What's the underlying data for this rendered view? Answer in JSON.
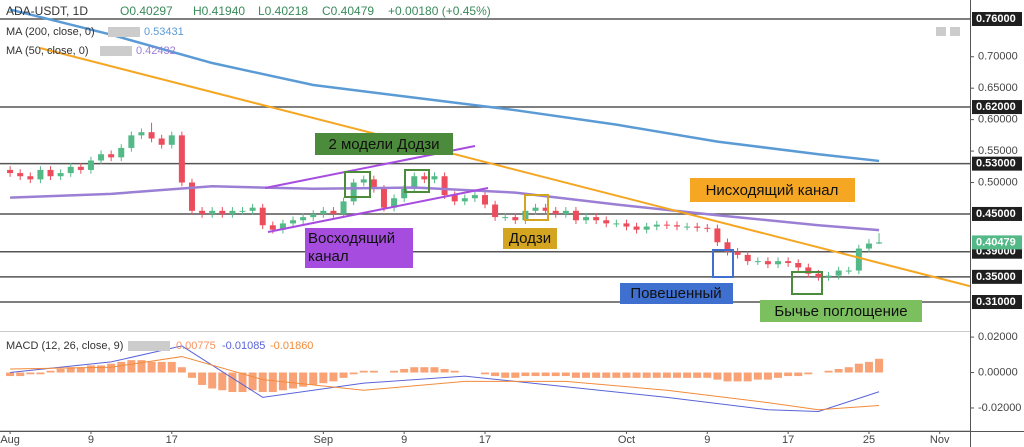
{
  "header": {
    "symbol": "ADA-USDT, 1D",
    "open": "O0.40297",
    "high": "H0.41940",
    "low": "L0.40218",
    "close": "C0.40479",
    "change": "+0.00180 (+0.45%)"
  },
  "chart_data": [
    {
      "type": "candlestick",
      "x": [
        0,
        1,
        2,
        3,
        4,
        5,
        6,
        7,
        8,
        9,
        10,
        11,
        12,
        13,
        14,
        15,
        16,
        17,
        18,
        19,
        20,
        21,
        22,
        23,
        24,
        25,
        26,
        27,
        28,
        29,
        30,
        31,
        32,
        33,
        34,
        35,
        36,
        37,
        38,
        39,
        40,
        41,
        42,
        43,
        44,
        45,
        46,
        47,
        48,
        49,
        50,
        51,
        52,
        53,
        54,
        55,
        56,
        57,
        58,
        59,
        60,
        61,
        62,
        63,
        64,
        65,
        66,
        67,
        68,
        69,
        70,
        71,
        72,
        73,
        74,
        75,
        76,
        77,
        78,
        79,
        80,
        81,
        82,
        83,
        84,
        85,
        86
      ],
      "open": [
        0.52,
        0.515,
        0.51,
        0.505,
        0.52,
        0.51,
        0.515,
        0.525,
        0.52,
        0.535,
        0.545,
        0.54,
        0.555,
        0.575,
        0.58,
        0.57,
        0.56,
        0.575,
        0.5,
        0.455,
        0.45,
        0.455,
        0.45,
        0.455,
        0.455,
        0.46,
        0.432,
        0.425,
        0.435,
        0.44,
        0.445,
        0.45,
        0.455,
        0.45,
        0.47,
        0.5,
        0.505,
        0.49,
        0.46,
        0.475,
        0.49,
        0.51,
        0.505,
        0.51,
        0.48,
        0.47,
        0.475,
        0.48,
        0.465,
        0.445,
        0.445,
        0.44,
        0.455,
        0.46,
        0.455,
        0.45,
        0.455,
        0.44,
        0.445,
        0.44,
        0.435,
        0.435,
        0.43,
        0.425,
        0.43,
        0.433,
        0.432,
        0.43,
        0.43,
        0.428,
        0.427,
        0.405,
        0.39,
        0.385,
        0.375,
        0.375,
        0.37,
        0.375,
        0.372,
        0.365,
        0.355,
        0.35,
        0.352,
        0.36,
        0.36,
        0.395,
        0.40297
      ],
      "high": [
        0.526,
        0.521,
        0.516,
        0.526,
        0.526,
        0.521,
        0.531,
        0.531,
        0.541,
        0.551,
        0.551,
        0.561,
        0.581,
        0.586,
        0.595,
        0.576,
        0.581,
        0.581,
        0.506,
        0.461,
        0.461,
        0.461,
        0.461,
        0.461,
        0.466,
        0.466,
        0.438,
        0.441,
        0.446,
        0.451,
        0.456,
        0.461,
        0.461,
        0.476,
        0.506,
        0.511,
        0.511,
        0.496,
        0.481,
        0.496,
        0.516,
        0.516,
        0.516,
        0.516,
        0.486,
        0.481,
        0.486,
        0.486,
        0.471,
        0.451,
        0.451,
        0.461,
        0.466,
        0.466,
        0.461,
        0.461,
        0.461,
        0.451,
        0.451,
        0.446,
        0.441,
        0.441,
        0.436,
        0.436,
        0.439,
        0.439,
        0.438,
        0.436,
        0.436,
        0.434,
        0.433,
        0.411,
        0.396,
        0.391,
        0.381,
        0.381,
        0.381,
        0.381,
        0.378,
        0.371,
        0.361,
        0.358,
        0.366,
        0.366,
        0.401,
        0.41,
        0.4194
      ],
      "low": [
        0.509,
        0.504,
        0.499,
        0.499,
        0.504,
        0.504,
        0.509,
        0.514,
        0.514,
        0.529,
        0.534,
        0.534,
        0.549,
        0.569,
        0.564,
        0.554,
        0.554,
        0.494,
        0.449,
        0.444,
        0.444,
        0.444,
        0.444,
        0.449,
        0.449,
        0.426,
        0.419,
        0.419,
        0.429,
        0.434,
        0.439,
        0.444,
        0.444,
        0.444,
        0.464,
        0.494,
        0.484,
        0.454,
        0.454,
        0.469,
        0.484,
        0.499,
        0.499,
        0.474,
        0.464,
        0.464,
        0.469,
        0.459,
        0.439,
        0.439,
        0.434,
        0.434,
        0.449,
        0.449,
        0.444,
        0.444,
        0.434,
        0.434,
        0.434,
        0.429,
        0.429,
        0.424,
        0.419,
        0.419,
        0.424,
        0.426,
        0.424,
        0.424,
        0.422,
        0.421,
        0.399,
        0.384,
        0.379,
        0.369,
        0.369,
        0.364,
        0.364,
        0.366,
        0.359,
        0.349,
        0.344,
        0.344,
        0.346,
        0.354,
        0.354,
        0.389,
        0.40218
      ],
      "close": [
        0.515,
        0.51,
        0.505,
        0.52,
        0.51,
        0.515,
        0.525,
        0.52,
        0.535,
        0.545,
        0.54,
        0.555,
        0.575,
        0.58,
        0.57,
        0.56,
        0.575,
        0.5,
        0.455,
        0.45,
        0.455,
        0.45,
        0.455,
        0.455,
        0.46,
        0.432,
        0.425,
        0.435,
        0.44,
        0.445,
        0.45,
        0.455,
        0.45,
        0.47,
        0.5,
        0.505,
        0.49,
        0.46,
        0.475,
        0.49,
        0.51,
        0.505,
        0.51,
        0.48,
        0.47,
        0.475,
        0.48,
        0.465,
        0.445,
        0.445,
        0.44,
        0.455,
        0.46,
        0.455,
        0.45,
        0.455,
        0.44,
        0.445,
        0.44,
        0.435,
        0.435,
        0.43,
        0.425,
        0.43,
        0.433,
        0.432,
        0.43,
        0.43,
        0.428,
        0.427,
        0.405,
        0.39,
        0.385,
        0.375,
        0.375,
        0.37,
        0.375,
        0.372,
        0.365,
        0.355,
        0.35,
        0.352,
        0.36,
        0.36,
        0.395,
        0.40297,
        0.40479
      ],
      "up_color": "#53b987",
      "down_color": "#eb4d5c",
      "xlim": [
        -1,
        95
      ],
      "xticks": [
        {
          "value": 0,
          "label": "Aug"
        },
        {
          "value": 8,
          "label": "9"
        },
        {
          "value": 16,
          "label": "17"
        },
        {
          "value": 31,
          "label": "Sep"
        },
        {
          "value": 39,
          "label": "9"
        },
        {
          "value": 47,
          "label": "17"
        },
        {
          "value": 61,
          "label": "Oct"
        },
        {
          "value": 69,
          "label": "9"
        },
        {
          "value": 77,
          "label": "17"
        },
        {
          "value": 85,
          "label": "25"
        },
        {
          "value": 92,
          "label": "Nov"
        }
      ],
      "ylim": [
        0.2655,
        0.7902
      ],
      "yticks": [
        {
          "value": 0.7,
          "label": "0.70000"
        },
        {
          "value": 0.65,
          "label": "0.65000"
        },
        {
          "value": 0.6,
          "label": "0.60000"
        },
        {
          "value": 0.55,
          "label": "0.55000"
        },
        {
          "value": 0.5,
          "label": "0.50000"
        }
      ],
      "levels": [
        {
          "value": 0.76,
          "label": "0.76000"
        },
        {
          "value": 0.62,
          "label": "0.62000"
        },
        {
          "value": 0.53,
          "label": "0.53000"
        },
        {
          "value": 0.45,
          "label": "0.45000"
        },
        {
          "value": 0.39,
          "label": "0.39000"
        },
        {
          "value": 0.35,
          "label": "0.35000"
        },
        {
          "value": 0.31,
          "label": "0.31000"
        }
      ],
      "level_color": "#555555",
      "last_price": {
        "value": 0.40479,
        "label": "0.40479"
      },
      "series": [
        {
          "name": "MA (200, close, 0)",
          "value_label": "0.53431",
          "color": "#5b9bd5",
          "x": [
            0,
            10,
            20,
            30,
            40,
            50,
            60,
            70,
            80,
            86
          ],
          "values": [
            0.775,
            0.735,
            0.69,
            0.655,
            0.635,
            0.615,
            0.592,
            0.565,
            0.545,
            0.53431
          ]
        },
        {
          "name": "MA (50, close, 0)",
          "value_label": "0.42432",
          "color": "#9b7fd4",
          "x": [
            0,
            10,
            20,
            30,
            40,
            50,
            60,
            70,
            80,
            86
          ],
          "values": [
            0.476,
            0.482,
            0.494,
            0.49,
            0.492,
            0.484,
            0.465,
            0.448,
            0.432,
            0.42432
          ]
        }
      ],
      "annotations": [
        {
          "text": "2 модели Додзи",
          "color": "#4b8b3b"
        },
        {
          "text": "Нисходящий канал",
          "color": "#f5a623"
        },
        {
          "text": [
            "Восходящий",
            "канал"
          ],
          "color": "#a64de0"
        },
        {
          "text": "Додзи",
          "color": "#d4a521"
        },
        {
          "text": "Повешенный",
          "color": "#3f6fcf"
        },
        {
          "text": "Бычье поглощение",
          "color": "#7bbf5e"
        }
      ]
    },
    {
      "type": "macd",
      "title": "MACD (12, 26, close, 9)",
      "ylim": [
        -0.0313,
        0.0223
      ],
      "yticks": [
        {
          "value": 0.02,
          "label": "0.02000"
        },
        {
          "value": 0,
          "label": "0.00000"
        },
        {
          "value": -0.02,
          "label": "-0.02000"
        }
      ],
      "histogram": {
        "value_label": "0.00775",
        "color": "#f7925e",
        "values": [
          -0.002,
          -0.002,
          -0.001,
          -0.001,
          0.001,
          0.002,
          0.003,
          0.003,
          0.004,
          0.004,
          0.005,
          0.006,
          0.007,
          0.007,
          0.006,
          0.006,
          0.006,
          0.003,
          -0.003,
          -0.007,
          -0.009,
          -0.01,
          -0.011,
          -0.011,
          -0.01,
          -0.011,
          -0.011,
          -0.01,
          -0.009,
          -0.008,
          -0.007,
          -0.006,
          -0.005,
          -0.003,
          -0.001,
          0.001,
          0.001,
          0.0,
          0.001,
          0.002,
          0.003,
          0.003,
          0.003,
          0.002,
          0.001,
          0.0,
          0.0,
          -0.001,
          -0.002,
          -0.003,
          -0.003,
          -0.002,
          -0.002,
          -0.002,
          -0.002,
          -0.002,
          -0.003,
          -0.003,
          -0.003,
          -0.003,
          -0.003,
          -0.003,
          -0.003,
          -0.003,
          -0.003,
          -0.003,
          -0.003,
          -0.003,
          -0.003,
          -0.003,
          -0.004,
          -0.005,
          -0.005,
          -0.005,
          -0.004,
          -0.004,
          -0.003,
          -0.002,
          -0.002,
          -0.001,
          0.0,
          0.001,
          0.002,
          0.003,
          0.005,
          0.006,
          0.00775
        ]
      },
      "series": [
        {
          "value_label": "-0.01085",
          "color": "#5a63d8",
          "x": [
            0,
            10,
            17,
            25,
            35,
            45,
            55,
            65,
            75,
            80,
            86
          ],
          "values": [
            0.0,
            0.006,
            0.015,
            -0.014,
            -0.006,
            -0.002,
            -0.008,
            -0.014,
            -0.021,
            -0.022,
            -0.01085
          ]
        },
        {
          "value_label": "-0.01860",
          "color": "#f28b3b",
          "x": [
            0,
            10,
            17,
            25,
            35,
            45,
            55,
            65,
            75,
            80,
            86
          ],
          "values": [
            0.002,
            0.003,
            0.009,
            -0.004,
            -0.01,
            -0.005,
            -0.005,
            -0.01,
            -0.017,
            -0.021,
            -0.0186
          ]
        }
      ]
    }
  ]
}
